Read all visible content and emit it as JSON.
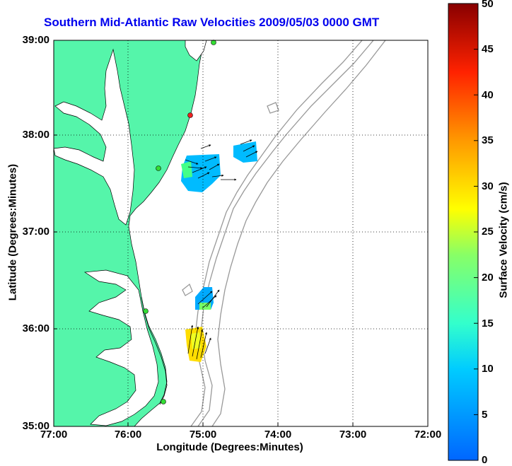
{
  "title": "Southern Mid-Atlantic Raw Velocities 2009/05/03 0000 GMT",
  "axes": {
    "xlabel": "Longitude (Degrees:Minutes)",
    "ylabel": "Latitude (Degrees:Minutes)",
    "xticks": [
      "77:00",
      "76:00",
      "75:00",
      "74:00",
      "73:00",
      "72:00"
    ],
    "yticks": [
      "39:00",
      "38:00",
      "37:00",
      "36:00",
      "35:00"
    ],
    "grid": true
  },
  "colorbar": {
    "label": "Surface Velocity (cm/s)",
    "ticks": [
      "50",
      "45",
      "40",
      "35",
      "30",
      "25",
      "20",
      "15",
      "10",
      "5",
      "0"
    ],
    "range": [
      0,
      50
    ]
  },
  "colors": {
    "land": "#55f5aa",
    "title": "#0000ee",
    "bathymetry": "#999999",
    "station_active": "#33dd33",
    "station_inactive": "#ee2222"
  },
  "stations": [
    {
      "status": "active",
      "lon": -74.85,
      "lat": 39.0
    },
    {
      "status": "inactive",
      "lon": -75.1,
      "lat": 38.22
    },
    {
      "status": "active",
      "lon": -75.55,
      "lat": 37.65
    },
    {
      "status": "active",
      "lon": -75.7,
      "lat": 36.2
    },
    {
      "status": "active",
      "lon": -75.5,
      "lat": 35.25
    }
  ]
}
